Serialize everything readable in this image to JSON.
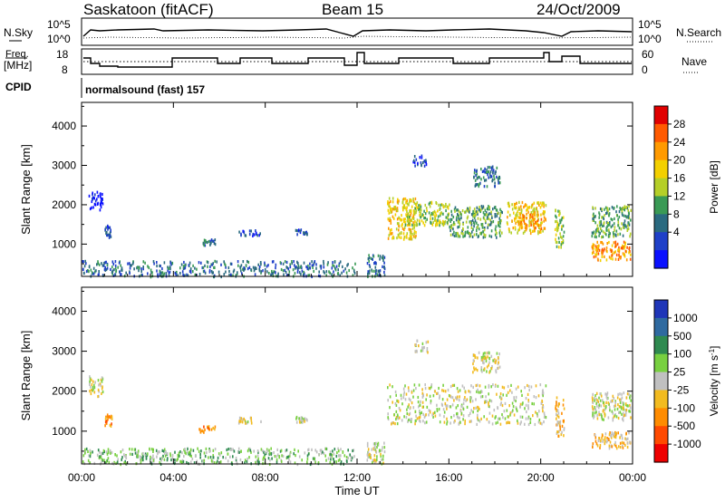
{
  "header": {
    "station": "Saskatoon (fitACF)",
    "beam": "Beam 15",
    "date": "24/Oct/2009"
  },
  "aux_panels": {
    "nsky_label": "N.Sky",
    "nsearch_label": "N.Search",
    "freq_label_top": "Freq.",
    "freq_label_bottom": "[MHz]",
    "nave_label": "Nave",
    "cpid_label": "CPID",
    "cpid_value": "normalsound (fast) 157",
    "noise_tick_top": "10^5",
    "noise_tick_bottom": "10^0",
    "freq_ticks": [
      "18",
      "8"
    ],
    "nave_ticks": [
      "60",
      "0"
    ]
  },
  "chart_data": [
    {
      "type": "heatmap",
      "name": "power",
      "ylabel": "Slant Range [km]",
      "xlabel": "",
      "x_ticks": [
        "00:00",
        "04:00",
        "08:00",
        "12:00",
        "16:00",
        "20:00",
        "00:00"
      ],
      "x_range_hours": [
        0,
        24
      ],
      "y_ticks": [
        1000,
        2000,
        3000,
        4000
      ],
      "ylim": [
        180,
        4600
      ],
      "colorbar": {
        "label": "Power [dB]",
        "ticks": [
          "28",
          "24",
          "20",
          "16",
          "12",
          "8",
          "4"
        ],
        "colors": [
          "#e00000",
          "#ff5a00",
          "#ff9a00",
          "#f3d000",
          "#b5cf28",
          "#3a9a55",
          "#2a6a80",
          "#1f40c8",
          "#0a10ff"
        ]
      },
      "regions": [
        {
          "t": [
            0.3,
            0.9
          ],
          "r": [
            1900,
            2400
          ],
          "level": 0
        },
        {
          "t": [
            1.0,
            1.3
          ],
          "r": [
            1150,
            1500
          ],
          "level": 1
        },
        {
          "t": [
            5.1,
            5.8
          ],
          "r": [
            1000,
            1150
          ],
          "level": 2
        },
        {
          "t": [
            6.8,
            7.8
          ],
          "r": [
            1230,
            1380
          ],
          "level": 1
        },
        {
          "t": [
            9.3,
            9.8
          ],
          "r": [
            1250,
            1400
          ],
          "level": 1
        },
        {
          "t": [
            0.0,
            11.9
          ],
          "r": [
            200,
            600
          ],
          "level": 2
        },
        {
          "t": [
            12.4,
            13.2
          ],
          "r": [
            200,
            750
          ],
          "level": 2
        },
        {
          "t": [
            13.3,
            14.6
          ],
          "r": [
            1150,
            2200
          ],
          "level": 5
        },
        {
          "t": [
            14.0,
            16.0
          ],
          "r": [
            1500,
            2100
          ],
          "level": 4
        },
        {
          "t": [
            16.0,
            18.3
          ],
          "r": [
            1200,
            2000
          ],
          "level": 3
        },
        {
          "t": [
            17.0,
            18.2
          ],
          "r": [
            2500,
            3000
          ],
          "level": 2
        },
        {
          "t": [
            18.5,
            20.2
          ],
          "r": [
            1300,
            2100
          ],
          "level": 5
        },
        {
          "t": [
            19.0,
            20.0
          ],
          "r": [
            1400,
            1800
          ],
          "level": 6
        },
        {
          "t": [
            20.6,
            21.0
          ],
          "r": [
            900,
            1900
          ],
          "level": 4
        },
        {
          "t": [
            22.2,
            23.9
          ],
          "r": [
            1200,
            2000
          ],
          "level": 3
        },
        {
          "t": [
            22.2,
            23.9
          ],
          "r": [
            600,
            1100
          ],
          "level": 6
        },
        {
          "t": [
            14.4,
            15.0
          ],
          "r": [
            3000,
            3300
          ],
          "level": 1
        }
      ]
    },
    {
      "type": "heatmap",
      "name": "velocity",
      "ylabel": "Slant Range [km]",
      "xlabel": "Time UT",
      "x_ticks": [
        "00:00",
        "04:00",
        "08:00",
        "12:00",
        "16:00",
        "20:00",
        "00:00"
      ],
      "x_range_hours": [
        0,
        24
      ],
      "y_ticks": [
        1000,
        2000,
        3000,
        4000
      ],
      "ylim": [
        180,
        4600
      ],
      "colorbar": {
        "label": "Velocity [m s",
        "label_superscript": "-1",
        "label_close": "]",
        "ticks": [
          "1000",
          "500",
          "100",
          "25",
          "-25",
          "-100",
          "-500",
          "-1000"
        ],
        "colors": [
          "#1f36b8",
          "#2f6aa0",
          "#2f8a50",
          "#78d040",
          "#c0c0c0",
          "#f2bb20",
          "#ff8c00",
          "#ff4a00",
          "#ee0000"
        ]
      },
      "regions": [
        {
          "t": [
            0.3,
            0.9
          ],
          "r": [
            1900,
            2400
          ],
          "level": 4
        },
        {
          "t": [
            1.0,
            1.3
          ],
          "r": [
            1150,
            1500
          ],
          "level": 2
        },
        {
          "t": [
            5.1,
            5.8
          ],
          "r": [
            1000,
            1150
          ],
          "level": 2
        },
        {
          "t": [
            6.8,
            7.8
          ],
          "r": [
            1230,
            1380
          ],
          "level": 4
        },
        {
          "t": [
            9.3,
            9.8
          ],
          "r": [
            1250,
            1400
          ],
          "level": 4
        },
        {
          "t": [
            0.0,
            11.9
          ],
          "r": [
            200,
            600
          ],
          "level": 5
        },
        {
          "t": [
            12.4,
            13.2
          ],
          "r": [
            200,
            750
          ],
          "level": 4
        },
        {
          "t": [
            13.3,
            20.2
          ],
          "r": [
            1200,
            2200
          ],
          "level": 4
        },
        {
          "t": [
            17.0,
            18.2
          ],
          "r": [
            2500,
            3000
          ],
          "level": 4
        },
        {
          "t": [
            20.6,
            21.0
          ],
          "r": [
            900,
            1900
          ],
          "level": 3
        },
        {
          "t": [
            22.2,
            23.9
          ],
          "r": [
            1300,
            2000
          ],
          "level": 4
        },
        {
          "t": [
            22.2,
            23.9
          ],
          "r": [
            600,
            1000
          ],
          "level": 3
        },
        {
          "t": [
            14.5,
            15.1
          ],
          "r": [
            3000,
            3300
          ],
          "level": 4
        }
      ]
    }
  ]
}
